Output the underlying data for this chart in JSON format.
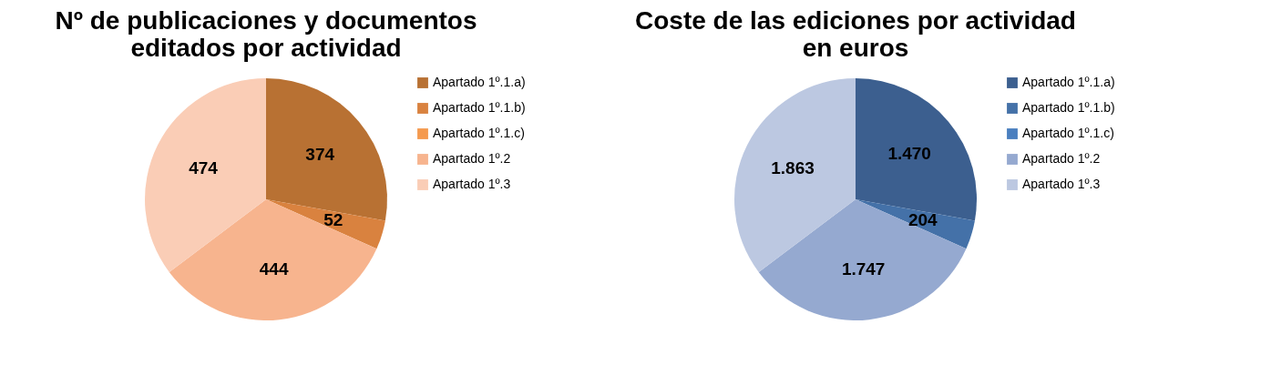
{
  "chart_data": [
    {
      "type": "pie",
      "title": "Nº de publicaciones y documentos editados por actividad",
      "categories": [
        "Apartado 1º.1.a)",
        "Apartado 1º.1.b)",
        "Apartado 1º.1.c)",
        "Apartado 1º.2",
        "Apartado 1º.3"
      ],
      "values": [
        374,
        52,
        0,
        444,
        474
      ],
      "value_labels": [
        "374",
        "52",
        null,
        "444",
        "474"
      ],
      "colors": [
        "#b87133",
        "#d9823f",
        "#f59a4f",
        "#f7b48e",
        "#facdb6"
      ],
      "legend": "right"
    },
    {
      "type": "pie",
      "title": "Coste de las ediciones por actividad en euros",
      "categories": [
        "Apartado 1º.1.a)",
        "Apartado 1º.1.b)",
        "Apartado 1º.1.c)",
        "Apartado 1º.2",
        "Apartado 1º.3"
      ],
      "values": [
        1470,
        204,
        0,
        1747,
        1863
      ],
      "value_labels": [
        "1.470",
        "204",
        null,
        "1.747",
        "1.863"
      ],
      "colors": [
        "#3c5f8f",
        "#4471a8",
        "#4a7fbf",
        "#95a9d0",
        "#bcc8e1"
      ],
      "legend": "right"
    }
  ]
}
